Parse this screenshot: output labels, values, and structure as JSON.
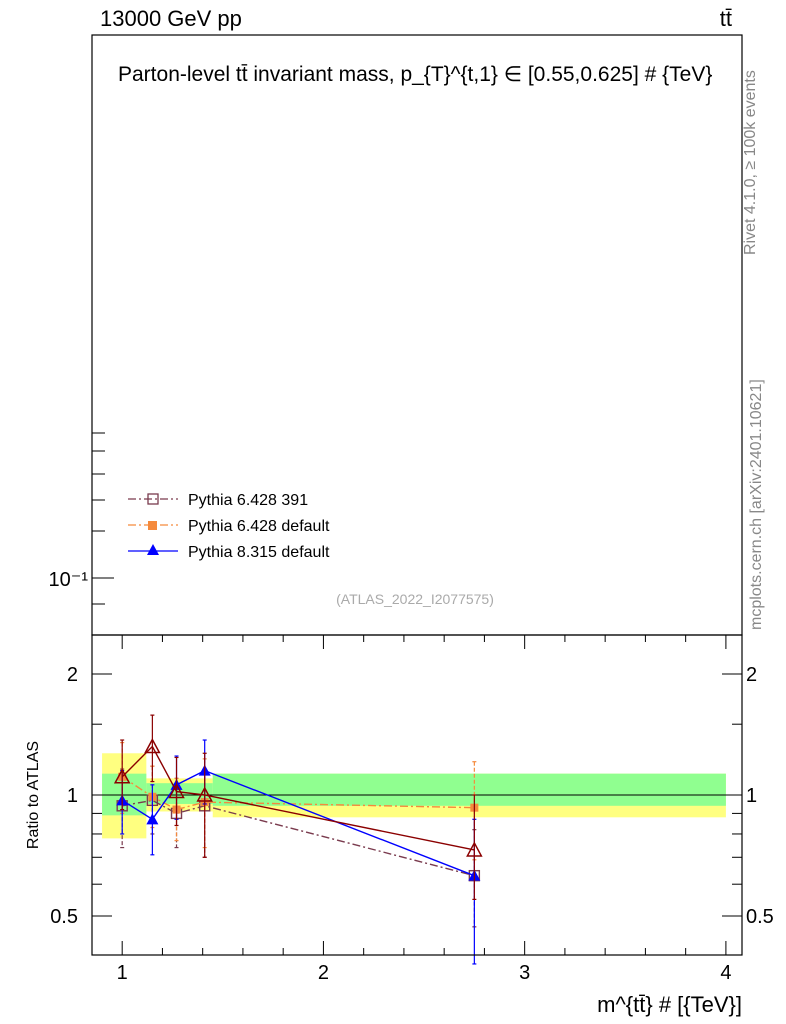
{
  "header": {
    "energy_label": "13000 GeV pp",
    "process_label": "tt̄"
  },
  "side": {
    "rivet_label": "Rivet 4.1.0, ≥ 100k events",
    "mcplots_label": "mcplots.cern.ch [arXiv:2401.10621]"
  },
  "chart_data": {
    "type": "line",
    "title": "Parton-level tt̄ invariant mass, p_{T}^{t,1} ∈ [0.55,0.625] # {TeV}",
    "watermark": "(ATLAS_2022_I2077575)",
    "main_panel": {
      "yscale": "log",
      "ytick_labels": [
        "10⁻¹"
      ],
      "series_drawn": "none"
    },
    "ratio_panel": {
      "xlabel": "m^{tt̄} # [{TeV}]",
      "ylabel": "Ratio to ATLAS",
      "xlim": [
        0.85,
        4.08
      ],
      "ylim": [
        0.4,
        2.5
      ],
      "yscale": "log",
      "x_ticks": [
        1,
        2,
        3,
        4
      ],
      "x_tick_labels": [
        "1",
        "2",
        "3",
        "4"
      ],
      "y_ticks": [
        0.5,
        1,
        2
      ],
      "y_tick_labels": [
        "0.5",
        "1",
        "2"
      ],
      "reference_bins": [
        {
          "lo": 0.9,
          "hi": 1.12,
          "stat_lo": 0.89,
          "stat_hi": 1.13,
          "total_lo": 0.78,
          "total_hi": 1.27
        },
        {
          "lo": 1.12,
          "hi": 1.45,
          "stat_lo": 0.95,
          "stat_hi": 1.07,
          "total_lo": 0.91,
          "total_hi": 1.1
        },
        {
          "lo": 1.45,
          "hi": 4.0,
          "stat_lo": 0.94,
          "stat_hi": 1.13,
          "total_lo": 0.88,
          "total_hi": 1.13
        }
      ],
      "series": [
        {
          "name": "Pythia 6.428 391",
          "color": "#7a3b4e",
          "marker": "open-square",
          "dash": "dashdot",
          "x": [
            1.0,
            1.15,
            1.27,
            1.41,
            2.75
          ],
          "y": [
            0.94,
            0.97,
            0.9,
            0.94,
            0.63
          ],
          "err_lo": [
            0.74,
            0.8,
            0.74,
            0.7,
            0.47
          ],
          "err_hi": [
            1.16,
            1.18,
            1.1,
            1.15,
            0.82
          ]
        },
        {
          "name": "Pythia 6.428 default",
          "color": "#f58a3c",
          "marker": "filled-square",
          "dash": "dashdot",
          "x": [
            1.0,
            1.15,
            1.27,
            1.41,
            2.75
          ],
          "y": [
            1.11,
            0.99,
            0.92,
            0.96,
            0.93
          ],
          "err_lo": [
            0.9,
            0.83,
            0.77,
            0.74,
            0.69
          ],
          "err_hi": [
            1.35,
            1.18,
            1.1,
            1.23,
            1.21
          ]
        },
        {
          "name": "Pythia 8.315 default",
          "color": "#0000ff",
          "marker": "filled-triangle",
          "dash": "solid",
          "x": [
            1.0,
            1.15,
            1.27,
            1.41,
            2.75
          ],
          "y": [
            0.97,
            0.87,
            1.06,
            1.15,
            0.63
          ],
          "err_lo": [
            0.8,
            0.71,
            0.87,
            0.95,
            0.38
          ],
          "err_hi": [
            1.15,
            1.06,
            1.25,
            1.37,
            0.87
          ]
        },
        {
          "name": "",
          "color": "#8b0000",
          "marker": "open-triangle",
          "dash": "solid",
          "x": [
            1.0,
            1.15,
            1.27,
            1.41,
            2.75
          ],
          "y": [
            1.11,
            1.32,
            1.02,
            1.0,
            0.73
          ],
          "err_lo": [
            0.92,
            1.08,
            0.84,
            0.7,
            0.55
          ],
          "err_hi": [
            1.37,
            1.58,
            1.24,
            1.27,
            1.0
          ]
        }
      ]
    },
    "legend": [
      "Pythia 6.428 391",
      "Pythia 6.428 default",
      "Pythia 8.315 default"
    ],
    "legend_position": "lower-left of main panel"
  }
}
